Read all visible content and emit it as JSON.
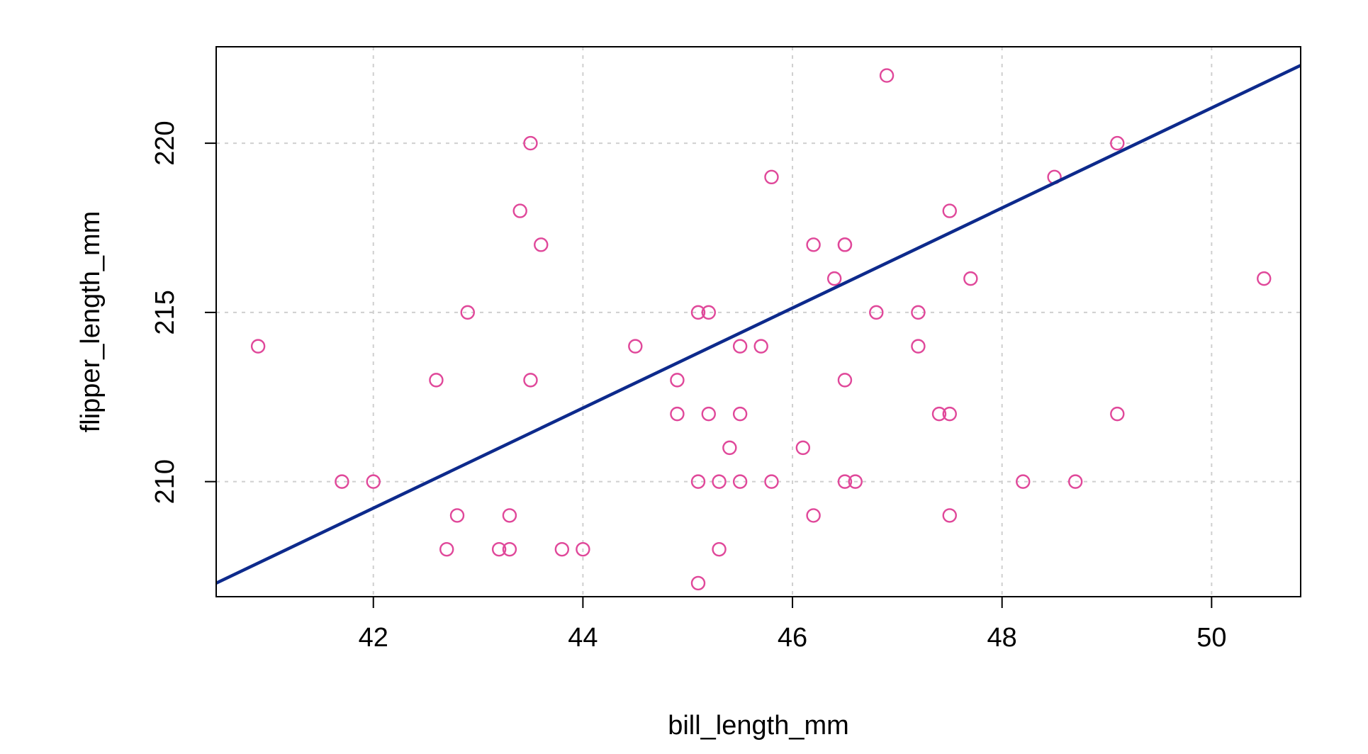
{
  "chart_data": {
    "type": "scatter",
    "title": "",
    "xlabel": "bill_length_mm",
    "ylabel": "flipper_length_mm",
    "xlim": [
      40.5,
      50.85
    ],
    "ylim": [
      206.6,
      222.85
    ],
    "x_ticks": [
      42,
      44,
      46,
      48,
      50
    ],
    "y_ticks": [
      210,
      215,
      220
    ],
    "grid": true,
    "point_color": "#e0489a",
    "line_color": "#0d2a8c",
    "points": [
      {
        "x": 40.9,
        "y": 214
      },
      {
        "x": 41.7,
        "y": 210
      },
      {
        "x": 42.0,
        "y": 210
      },
      {
        "x": 42.6,
        "y": 213
      },
      {
        "x": 42.7,
        "y": 208
      },
      {
        "x": 42.8,
        "y": 209
      },
      {
        "x": 42.9,
        "y": 215
      },
      {
        "x": 43.2,
        "y": 208
      },
      {
        "x": 43.3,
        "y": 208
      },
      {
        "x": 43.3,
        "y": 209
      },
      {
        "x": 43.4,
        "y": 218
      },
      {
        "x": 43.5,
        "y": 220
      },
      {
        "x": 43.5,
        "y": 213
      },
      {
        "x": 43.6,
        "y": 217
      },
      {
        "x": 43.8,
        "y": 208
      },
      {
        "x": 44.0,
        "y": 208
      },
      {
        "x": 44.5,
        "y": 214
      },
      {
        "x": 44.9,
        "y": 213
      },
      {
        "x": 44.9,
        "y": 212
      },
      {
        "x": 45.1,
        "y": 215
      },
      {
        "x": 45.2,
        "y": 215
      },
      {
        "x": 45.1,
        "y": 210
      },
      {
        "x": 45.1,
        "y": 207
      },
      {
        "x": 45.2,
        "y": 212
      },
      {
        "x": 45.3,
        "y": 210
      },
      {
        "x": 45.3,
        "y": 208
      },
      {
        "x": 45.4,
        "y": 211
      },
      {
        "x": 45.5,
        "y": 214
      },
      {
        "x": 45.5,
        "y": 212
      },
      {
        "x": 45.5,
        "y": 210
      },
      {
        "x": 45.7,
        "y": 214
      },
      {
        "x": 45.8,
        "y": 219
      },
      {
        "x": 45.8,
        "y": 210
      },
      {
        "x": 46.1,
        "y": 211
      },
      {
        "x": 46.2,
        "y": 217
      },
      {
        "x": 46.2,
        "y": 209
      },
      {
        "x": 46.4,
        "y": 216
      },
      {
        "x": 46.5,
        "y": 217
      },
      {
        "x": 46.5,
        "y": 217
      },
      {
        "x": 46.5,
        "y": 213
      },
      {
        "x": 46.5,
        "y": 210
      },
      {
        "x": 46.6,
        "y": 210
      },
      {
        "x": 46.8,
        "y": 215
      },
      {
        "x": 46.9,
        "y": 222
      },
      {
        "x": 47.2,
        "y": 215
      },
      {
        "x": 47.2,
        "y": 214
      },
      {
        "x": 47.4,
        "y": 212
      },
      {
        "x": 47.5,
        "y": 218
      },
      {
        "x": 47.5,
        "y": 212
      },
      {
        "x": 47.5,
        "y": 209
      },
      {
        "x": 47.7,
        "y": 216
      },
      {
        "x": 48.2,
        "y": 210
      },
      {
        "x": 48.5,
        "y": 219
      },
      {
        "x": 48.7,
        "y": 210
      },
      {
        "x": 49.1,
        "y": 220
      },
      {
        "x": 49.1,
        "y": 212
      },
      {
        "x": 50.5,
        "y": 216
      }
    ],
    "regression_line": {
      "x": [
        40.5,
        50.85
      ],
      "y": [
        207.0,
        222.3
      ]
    }
  }
}
